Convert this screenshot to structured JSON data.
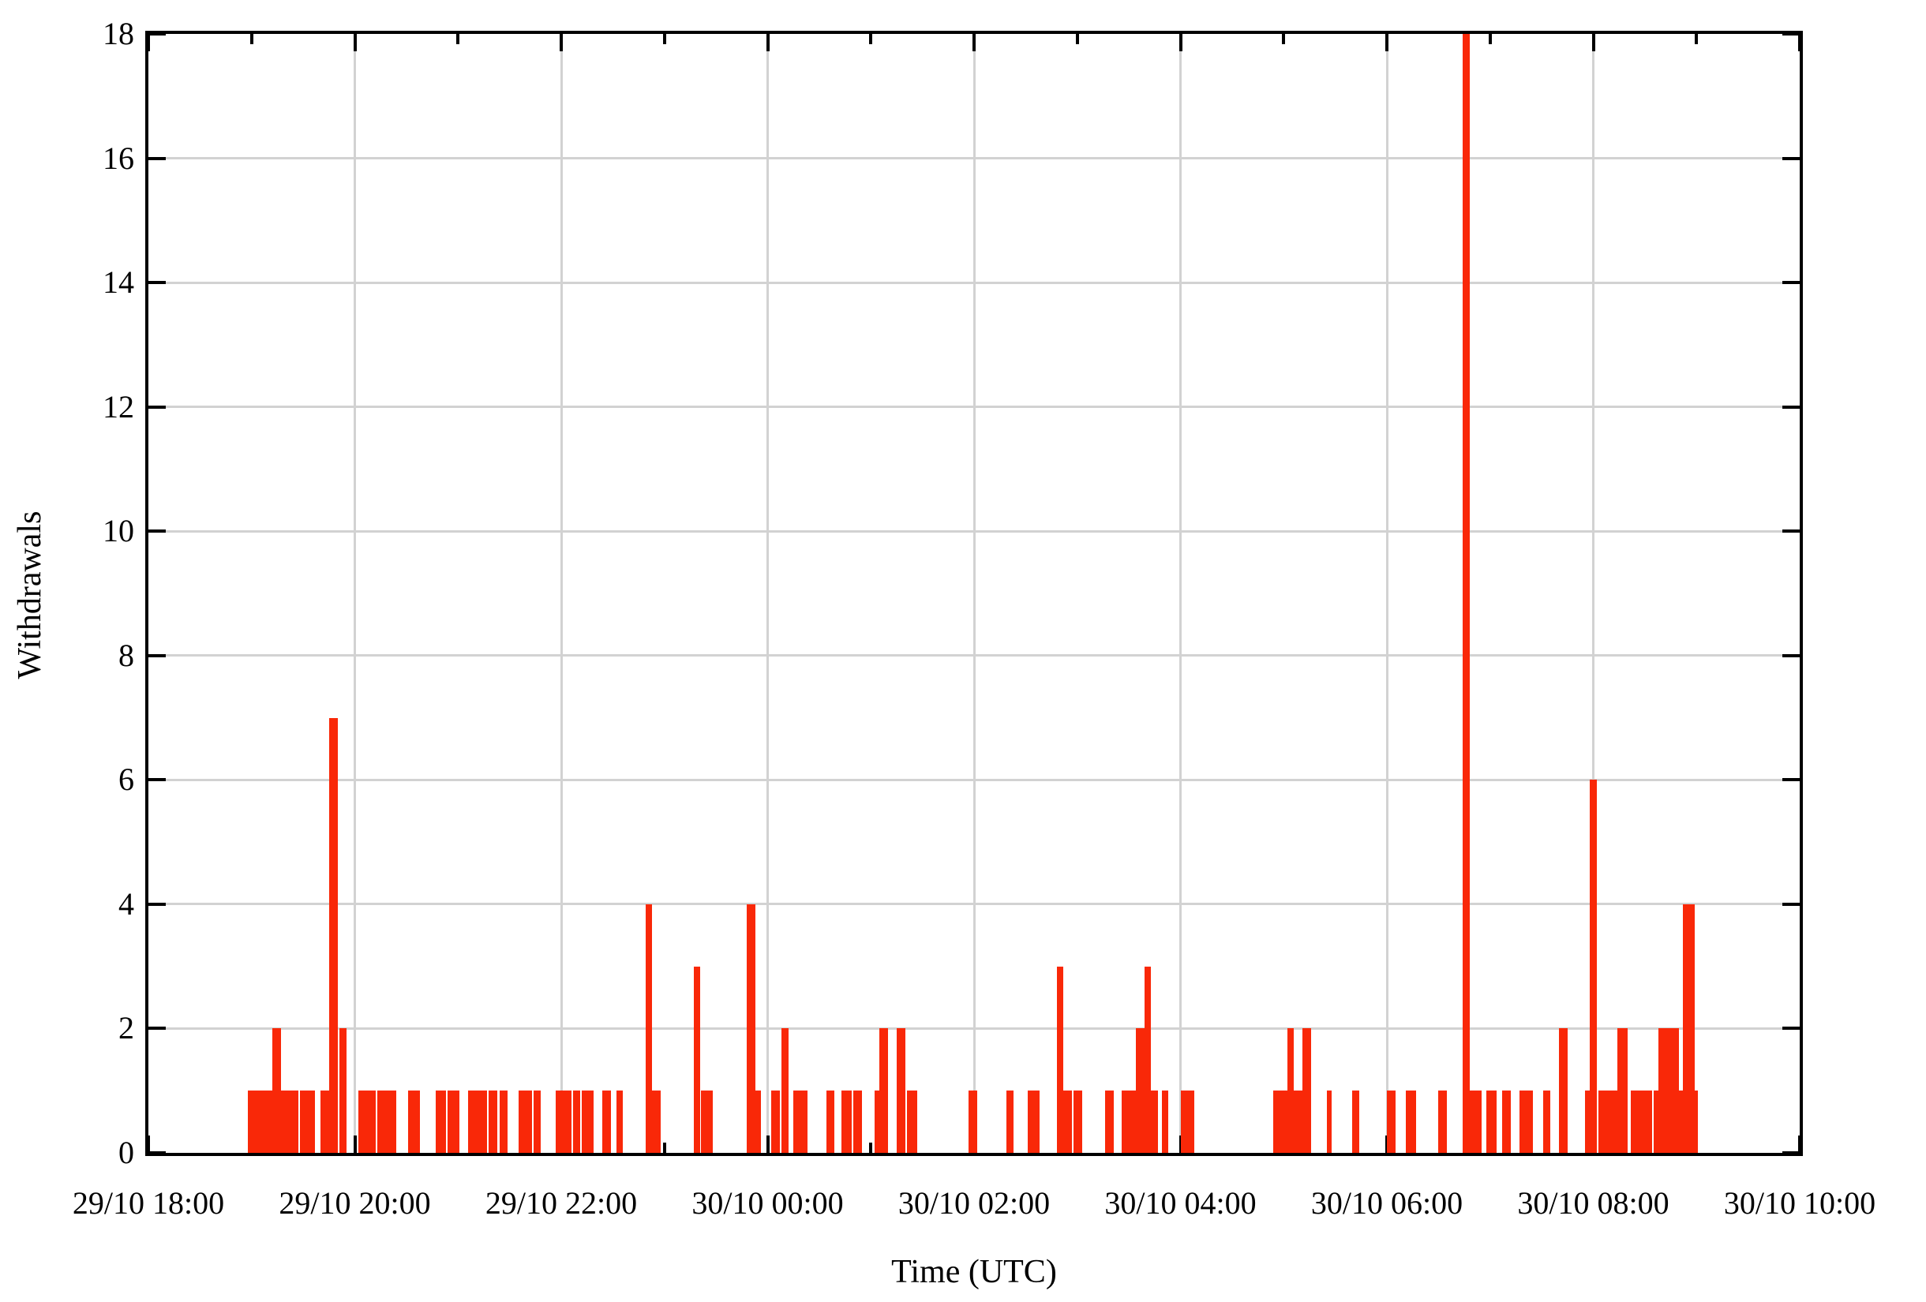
{
  "page": {
    "background": "#ffffff"
  },
  "chart_data": {
    "type": "bar",
    "title": "",
    "xlabel": "Time (UTC)",
    "ylabel": "Withdrawals",
    "bar_color": "#f92808",
    "grid_color": "#d2d2d2",
    "axis_color": "#000000",
    "grid": true,
    "legend": "none",
    "ylim": [
      0,
      18
    ],
    "y_tick_step": 2,
    "y_tick_labels": [
      "0",
      "2",
      "4",
      "6",
      "8",
      "10",
      "12",
      "14",
      "16",
      "18"
    ],
    "x_range_minutes": 960,
    "x_tick_interval_minutes": 120,
    "x_minor_tick_minutes": [
      60,
      180,
      300,
      420,
      540,
      660,
      780,
      900
    ],
    "x_tick_labels": [
      "29/10 18:00",
      "29/10 20:00",
      "29/10 22:00",
      "30/10 00:00",
      "30/10 02:00",
      "30/10 04:00",
      "30/10 06:00",
      "30/10 08:00",
      "30/10 10:00"
    ],
    "bars_note": "each bar = [start_minutes_after_29/10_18:00_UTC, end_minutes, withdrawals]",
    "bars": [
      [
        58,
        72,
        1
      ],
      [
        72,
        77,
        2
      ],
      [
        77,
        87,
        1
      ],
      [
        88,
        97,
        1
      ],
      [
        100,
        105,
        1
      ],
      [
        105,
        110,
        7
      ],
      [
        111,
        115,
        2
      ],
      [
        122,
        132,
        1
      ],
      [
        133,
        144,
        1
      ],
      [
        151,
        158,
        1
      ],
      [
        167,
        173,
        1
      ],
      [
        174,
        181,
        1
      ],
      [
        186,
        197,
        1
      ],
      [
        198,
        203,
        1
      ],
      [
        204,
        209,
        1
      ],
      [
        215,
        223,
        1
      ],
      [
        224,
        228,
        1
      ],
      [
        237,
        246,
        1
      ],
      [
        247,
        251,
        1
      ],
      [
        252,
        259,
        1
      ],
      [
        264,
        269,
        1
      ],
      [
        272,
        276,
        1
      ],
      [
        289,
        293,
        4
      ],
      [
        293,
        298,
        1
      ],
      [
        317,
        321,
        3
      ],
      [
        321,
        328,
        1
      ],
      [
        348,
        353,
        4
      ],
      [
        353,
        356,
        1
      ],
      [
        362,
        367,
        1
      ],
      [
        368,
        372,
        2
      ],
      [
        375,
        383,
        1
      ],
      [
        394,
        399,
        1
      ],
      [
        403,
        409,
        1
      ],
      [
        410,
        415,
        1
      ],
      [
        422,
        425,
        1
      ],
      [
        425,
        430,
        2
      ],
      [
        435,
        440,
        2
      ],
      [
        441,
        447,
        1
      ],
      [
        477,
        482,
        1
      ],
      [
        499,
        503,
        1
      ],
      [
        511,
        518,
        1
      ],
      [
        528,
        532,
        3
      ],
      [
        532,
        537,
        1
      ],
      [
        538,
        543,
        1
      ],
      [
        556,
        561,
        1
      ],
      [
        566,
        574,
        1
      ],
      [
        574,
        579,
        2
      ],
      [
        579,
        583,
        3
      ],
      [
        583,
        587,
        1
      ],
      [
        589,
        593,
        1
      ],
      [
        600,
        608,
        1
      ],
      [
        654,
        662,
        1
      ],
      [
        662,
        666,
        2
      ],
      [
        666,
        671,
        1
      ],
      [
        671,
        676,
        2
      ],
      [
        685,
        688,
        1
      ],
      [
        700,
        704,
        1
      ],
      [
        720,
        725,
        1
      ],
      [
        731,
        737,
        1
      ],
      [
        750,
        755,
        1
      ],
      [
        764,
        768,
        18
      ],
      [
        768,
        775,
        1
      ],
      [
        778,
        784,
        1
      ],
      [
        787,
        792,
        1
      ],
      [
        797,
        805,
        1
      ],
      [
        811,
        815,
        1
      ],
      [
        820,
        825,
        2
      ],
      [
        835,
        838,
        1
      ],
      [
        838,
        842,
        6
      ],
      [
        843,
        846,
        1
      ],
      [
        846,
        854,
        1
      ],
      [
        854,
        860,
        2
      ],
      [
        862,
        874,
        1
      ],
      [
        875,
        878,
        1
      ],
      [
        878,
        890,
        2
      ],
      [
        890,
        892,
        1
      ],
      [
        892,
        899,
        4
      ],
      [
        899,
        901,
        1
      ]
    ]
  }
}
